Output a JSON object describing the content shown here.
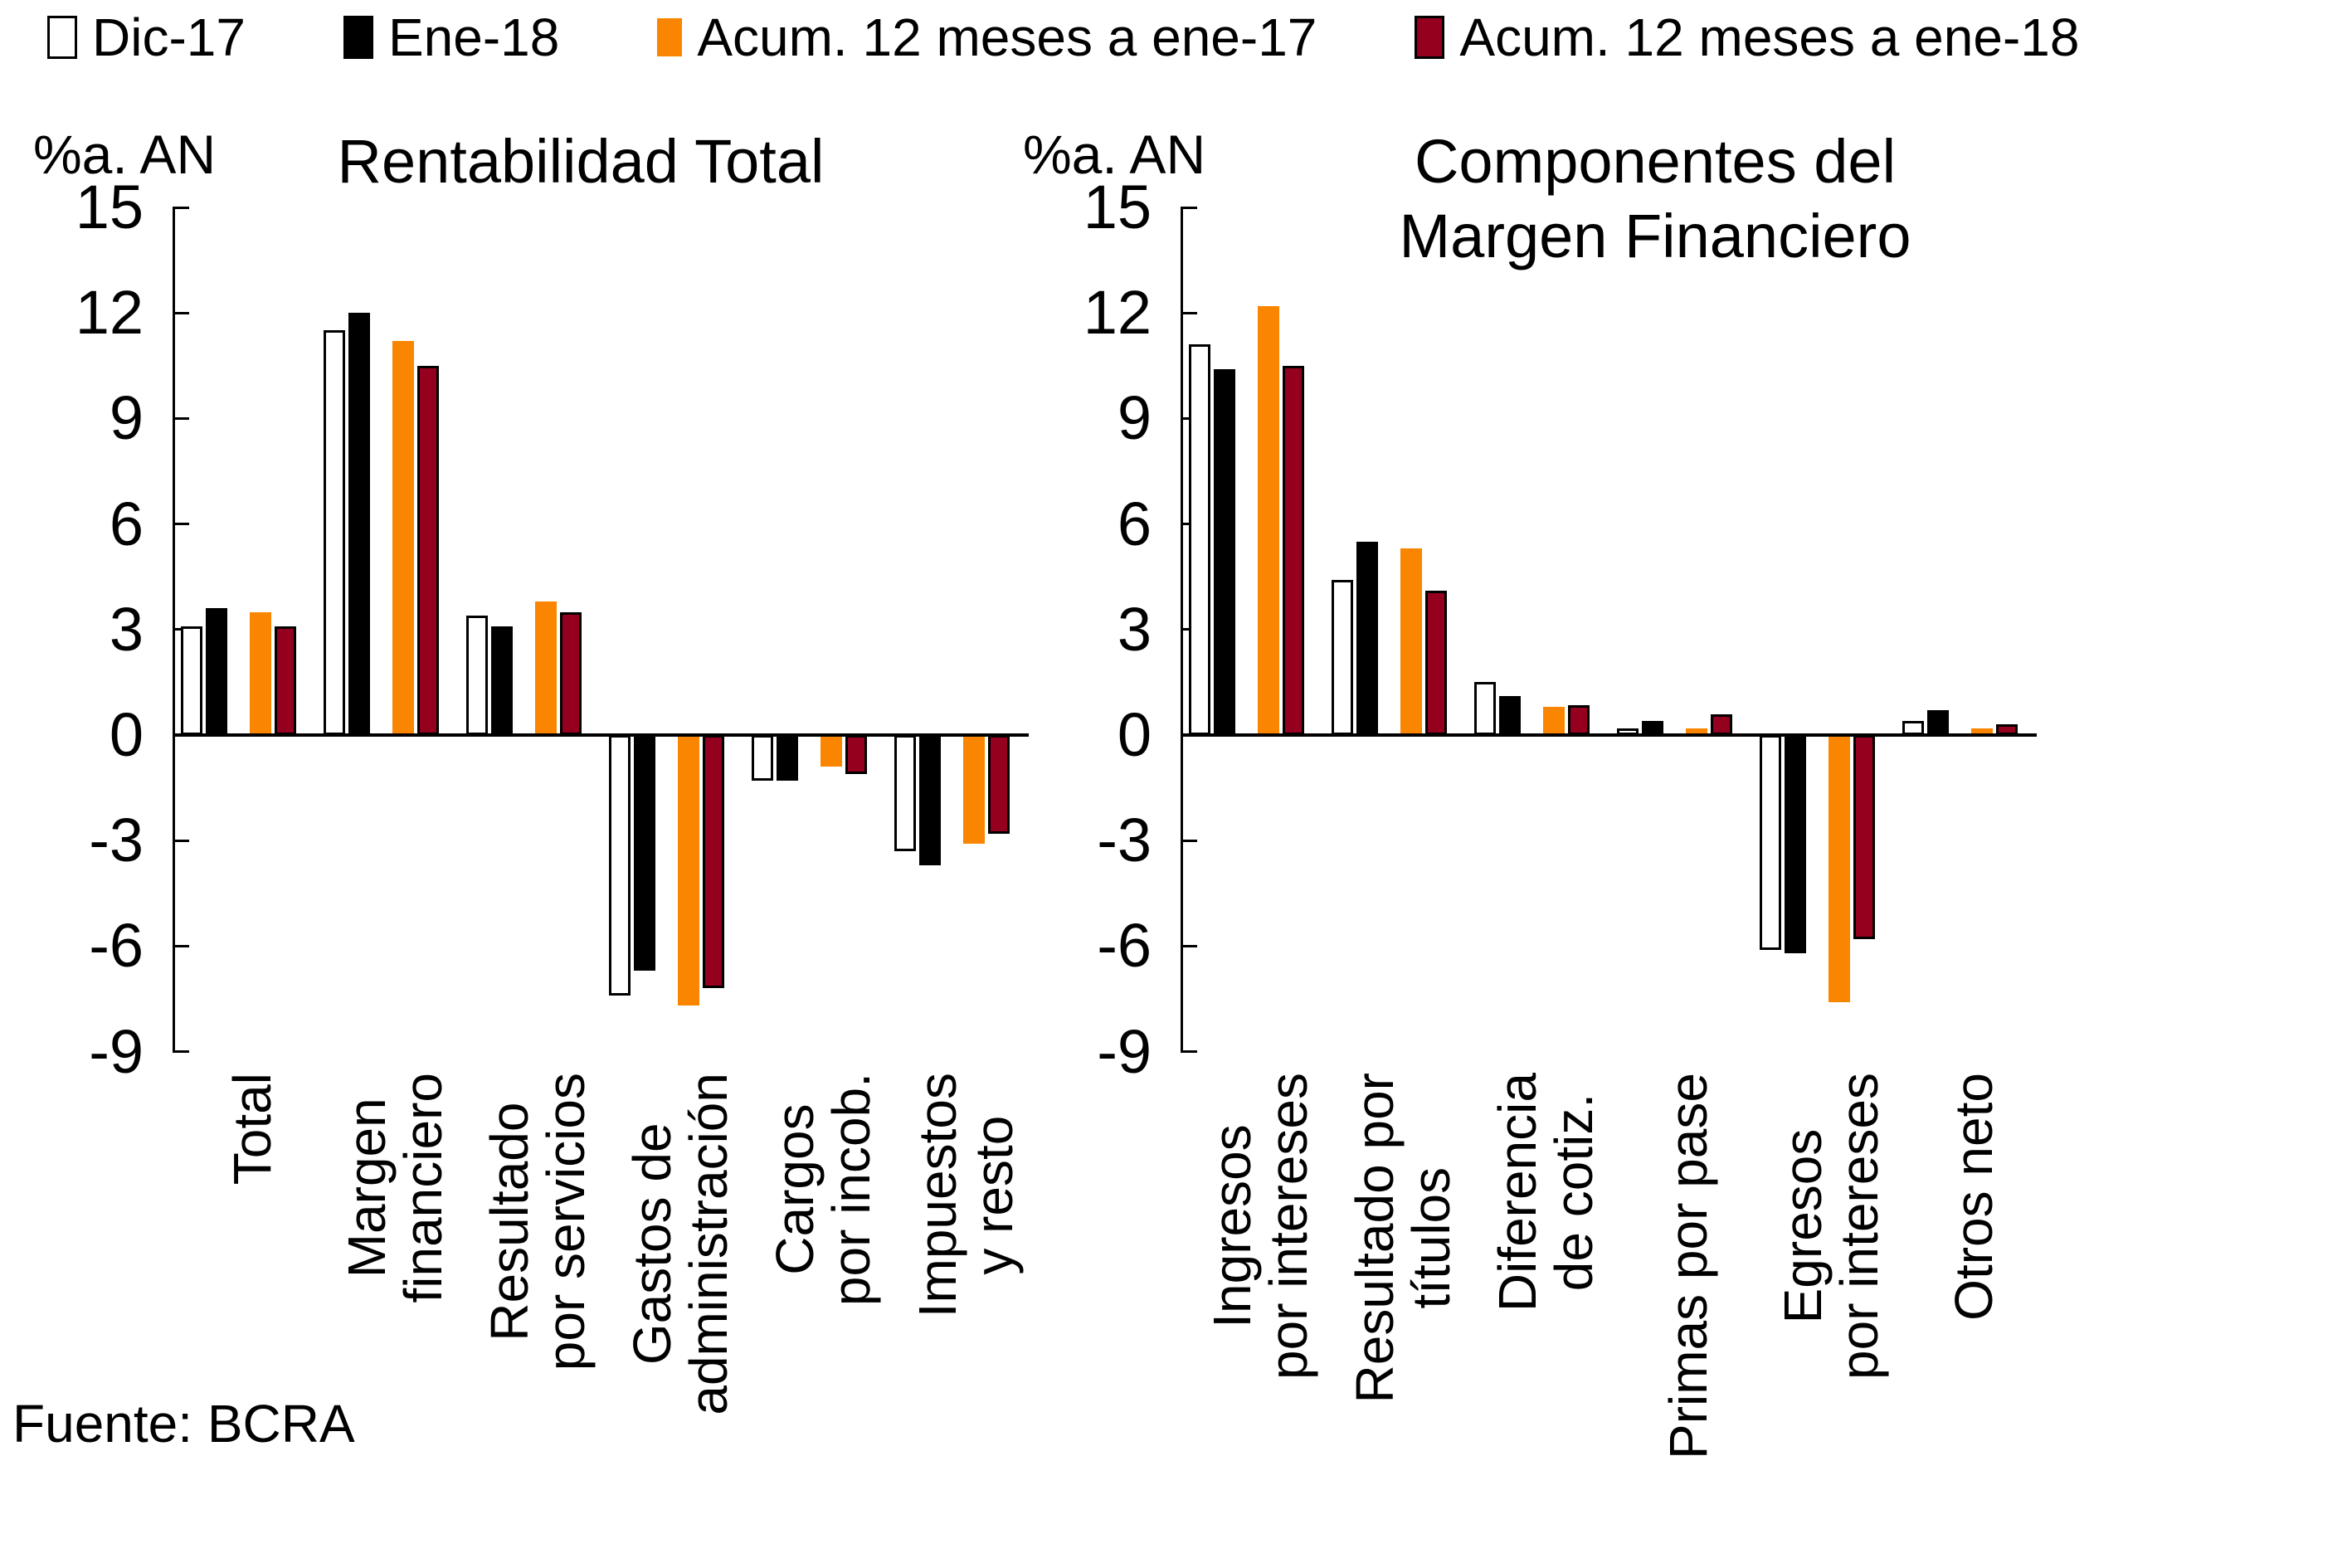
{
  "legend": [
    {
      "label": "Dic-17",
      "color": "#FFFFFF",
      "border": true
    },
    {
      "label": "Ene-18",
      "color": "#000000",
      "border": true
    },
    {
      "label": "Acum. 12 meses a ene-17",
      "color": "#FA8500",
      "border": false
    },
    {
      "label": "Acum. 12 meses a ene-18",
      "color": "#94001E",
      "border": true
    }
  ],
  "source_label": "Fuente: BCRA",
  "colors": {
    "dic17": "#FFFFFF",
    "ene18": "#000000",
    "acum17": "#FA8500",
    "acum18": "#94001E",
    "axis": "#000000",
    "background": "#FFFFFF"
  },
  "chart_data": [
    {
      "type": "bar",
      "title": "Rentabilidad Total",
      "unit_label": "%a. AN",
      "ylim": [
        -9,
        15
      ],
      "ytick_step": 3,
      "grid": false,
      "legend_position": "top",
      "categories": [
        "Total",
        "Margen\nfinanciero",
        "Resultado\npor servicios",
        "Gastos de\nadministración",
        "Cargos\npor incob.",
        "Impuestos\ny resto"
      ],
      "series": [
        {
          "name": "Dic-17",
          "values": [
            3.1,
            11.5,
            3.4,
            -7.4,
            -1.3,
            -3.3
          ]
        },
        {
          "name": "Ene-18",
          "values": [
            3.6,
            12.0,
            3.1,
            -6.7,
            -1.3,
            -3.7
          ]
        },
        {
          "name": "Acum. 12 meses a ene-17",
          "values": [
            3.5,
            11.2,
            3.8,
            -7.7,
            -0.9,
            -3.1
          ]
        },
        {
          "name": "Acum. 12 meses a ene-18",
          "values": [
            3.1,
            10.5,
            3.5,
            -7.2,
            -1.1,
            -2.8
          ]
        }
      ]
    },
    {
      "type": "bar",
      "title": "Componentes del\nMargen Financiero",
      "unit_label": "%a. AN",
      "ylim": [
        -9,
        15
      ],
      "ytick_step": 3,
      "grid": false,
      "legend_position": "top",
      "categories": [
        "Ingresos\npor intereses",
        "Resultado por\ntítulos",
        "Diferencia\nde cotiz.",
        "Primas por pase",
        "Egresos\npor intereses",
        "Otros neto"
      ],
      "series": [
        {
          "name": "Dic-17",
          "values": [
            11.1,
            4.4,
            1.5,
            0.2,
            -6.1,
            0.4
          ]
        },
        {
          "name": "Ene-18",
          "values": [
            10.4,
            5.5,
            1.1,
            0.4,
            -6.2,
            0.7
          ]
        },
        {
          "name": "Acum. 12 meses a ene-17",
          "values": [
            12.2,
            5.3,
            0.8,
            0.2,
            -7.6,
            0.2
          ]
        },
        {
          "name": "Acum. 12 meses a ene-18",
          "values": [
            10.5,
            4.1,
            0.85,
            0.6,
            -5.8,
            0.3
          ]
        }
      ]
    }
  ]
}
